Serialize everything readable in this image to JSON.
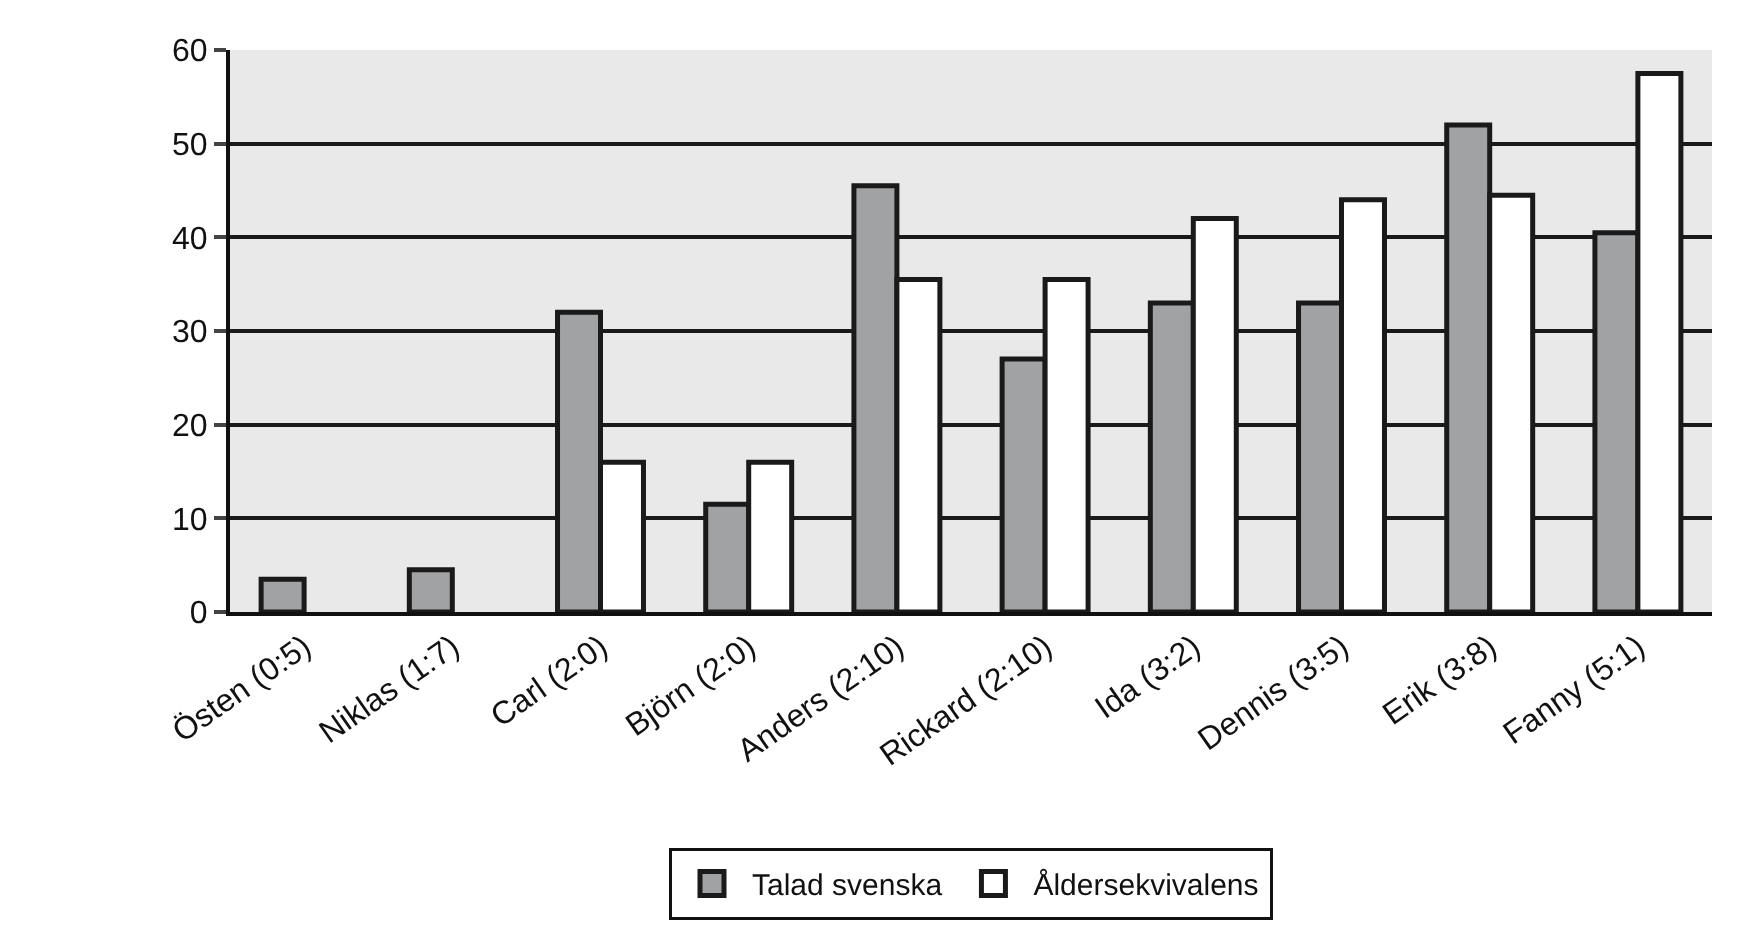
{
  "chart_data": {
    "type": "bar",
    "categories": [
      "Östen (0:5)",
      "Niklas (1:7)",
      "Carl (2:0)",
      "Björn (2:0)",
      "Anders (2:10)",
      "Rickard (2:10)",
      "Ida (3:2)",
      "Dennis (3:5)",
      "Erik (3:8)",
      "Fanny (5:1)"
    ],
    "series": [
      {
        "name": "Talad svenska",
        "color": "#a0a2a4",
        "values": [
          3.5,
          4.5,
          32,
          11.5,
          45.5,
          27,
          33,
          33,
          52,
          40.5
        ]
      },
      {
        "name": "Åldersekvivalens",
        "color": "#ffffff",
        "values": [
          null,
          null,
          16,
          16,
          35.5,
          35.5,
          42,
          44,
          44.5,
          57.5
        ]
      }
    ],
    "ylim": [
      0,
      60
    ],
    "yticks": [
      0,
      10,
      20,
      30,
      40,
      50,
      60
    ],
    "grid": "y",
    "legend": "bottom"
  }
}
